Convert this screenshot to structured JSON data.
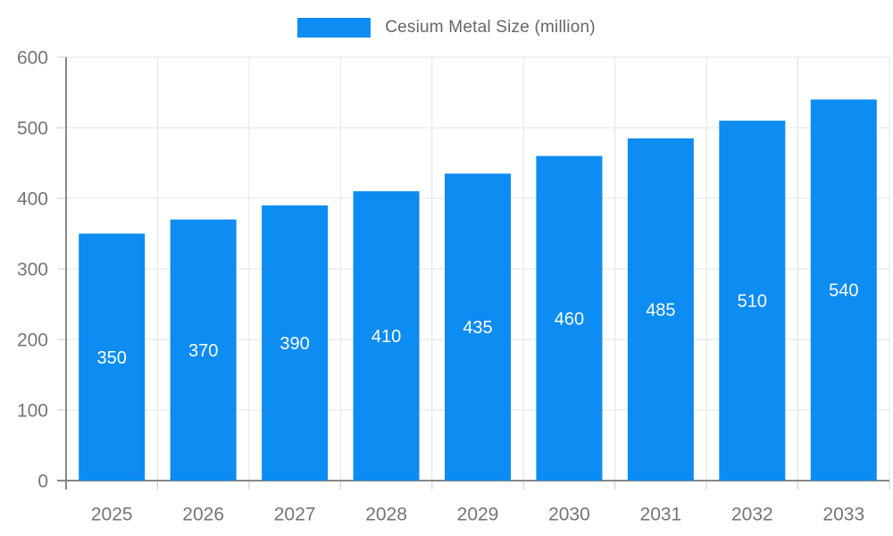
{
  "chart_data": {
    "type": "bar",
    "title": "",
    "legend": {
      "label": "Cesium Metal Size (million)",
      "position": "top"
    },
    "categories": [
      "2025",
      "2026",
      "2027",
      "2028",
      "2029",
      "2030",
      "2031",
      "2032",
      "2033"
    ],
    "values": [
      350,
      370,
      390,
      410,
      435,
      460,
      485,
      510,
      540
    ],
    "bar_value_labels": [
      "350",
      "370",
      "390",
      "410",
      "435",
      "460",
      "485",
      "510",
      "540"
    ],
    "xlabel": "",
    "ylabel": "",
    "ylim": [
      0,
      600
    ],
    "ytick_step": 100,
    "yticks": [
      "0",
      "100",
      "200",
      "300",
      "400",
      "500",
      "600"
    ],
    "grid": true,
    "colors": {
      "bar": "#0d8cf2",
      "bar_value_text": "#ffffff",
      "axis_text": "#757575",
      "legend_text": "#666666",
      "gridline": "#e3e3e3",
      "tick_mark": "#cccccc",
      "axis_border": "#888888",
      "background": "#ffffff"
    }
  }
}
